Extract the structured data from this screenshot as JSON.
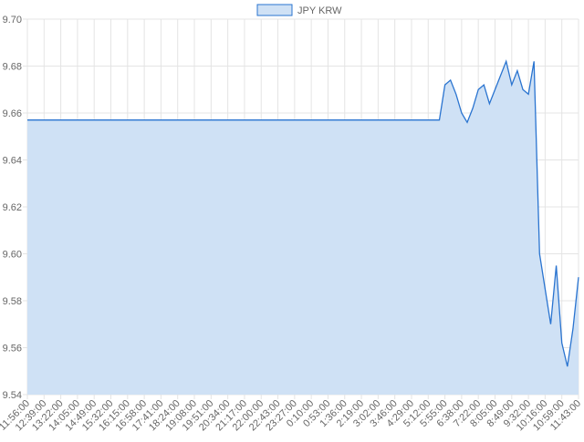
{
  "chart_data": {
    "type": "area",
    "categories": [
      "11:56:00",
      null,
      null,
      "12:39:00",
      null,
      null,
      "13:22:00",
      null,
      null,
      "14:05:00",
      null,
      null,
      "14:49:00",
      null,
      null,
      "15:32:00",
      null,
      null,
      "16:15:00",
      null,
      null,
      "16:58:00",
      null,
      null,
      "17:41:00",
      null,
      null,
      "18:24:00",
      null,
      null,
      "19:08:00",
      null,
      null,
      "19:51:00",
      null,
      null,
      "20:34:00",
      null,
      null,
      "21:17:00",
      null,
      null,
      "22:00:00",
      null,
      null,
      "22:43:00",
      null,
      null,
      "23:27:00",
      null,
      null,
      "0:10:00",
      null,
      null,
      "0:53:00",
      null,
      null,
      "1:36:00",
      null,
      null,
      "2:19:00",
      null,
      null,
      "3:02:00",
      null,
      null,
      "3:46:00",
      null,
      null,
      "4:29:00",
      null,
      null,
      "5:12:00",
      null,
      null,
      "5:55:00",
      null,
      null,
      "6:38:00",
      null,
      null,
      "7:22:00",
      null,
      null,
      "8:05:00",
      null,
      null,
      "8:49:00",
      null,
      null,
      "9:32:00",
      null,
      null,
      "10:16:00",
      null,
      null,
      "10:59:00",
      null,
      null,
      "11:43:00"
    ],
    "series": [
      {
        "name": "JPY KRW",
        "color": "#2a74d0",
        "fill": "#cfe1f5",
        "values": [
          9.657,
          9.657,
          9.657,
          9.657,
          9.657,
          9.657,
          9.657,
          9.657,
          9.657,
          9.657,
          9.657,
          9.657,
          9.657,
          9.657,
          9.657,
          9.657,
          9.657,
          9.657,
          9.657,
          9.657,
          9.657,
          9.657,
          9.657,
          9.657,
          9.657,
          9.657,
          9.657,
          9.657,
          9.657,
          9.657,
          9.657,
          9.657,
          9.657,
          9.657,
          9.657,
          9.657,
          9.657,
          9.657,
          9.657,
          9.657,
          9.657,
          9.657,
          9.657,
          9.657,
          9.657,
          9.657,
          9.657,
          9.657,
          9.657,
          9.657,
          9.657,
          9.657,
          9.657,
          9.657,
          9.657,
          9.657,
          9.657,
          9.657,
          9.657,
          9.657,
          9.657,
          9.657,
          9.657,
          9.657,
          9.657,
          9.657,
          9.657,
          9.657,
          9.657,
          9.657,
          9.657,
          9.657,
          9.657,
          9.657,
          9.657,
          9.672,
          9.674,
          9.668,
          9.66,
          9.656,
          9.662,
          9.67,
          9.672,
          9.664,
          9.67,
          9.676,
          9.682,
          9.672,
          9.678,
          9.67,
          9.668,
          9.682,
          9.6,
          9.585,
          9.57,
          9.595,
          9.562,
          9.552,
          9.568,
          9.59
        ]
      }
    ],
    "ylim": [
      9.54,
      9.7
    ],
    "yticks": [
      9.54,
      9.56,
      9.58,
      {
        "value": 9.6,
        "label": "9.60"
      },
      9.62,
      9.64,
      9.66,
      9.68,
      {
        "value": 9.7,
        "label": "9.70"
      }
    ],
    "grid": true,
    "legend": "top"
  }
}
